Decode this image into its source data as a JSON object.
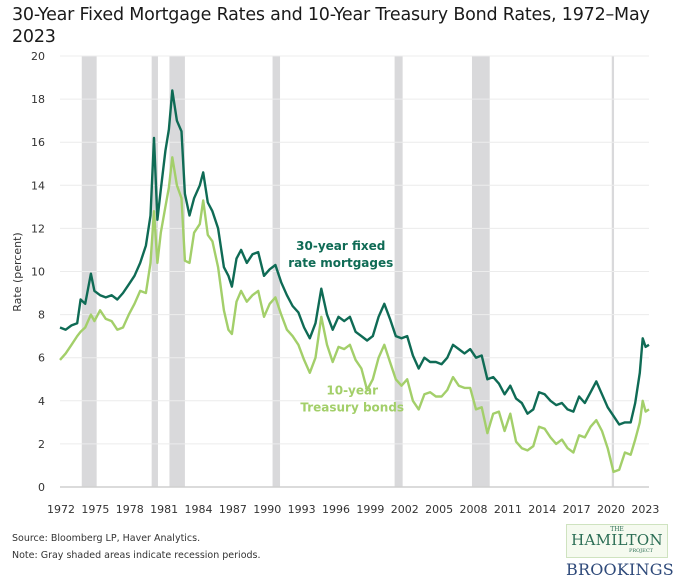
{
  "title": "30-Year Fixed Mortgage Rates and 10-Year Treasury Bond Rates, 1972–May 2023",
  "footer": {
    "source": "Source: Bloomberg LP, Haver Analytics.",
    "note": "Note: Gray shaded areas indicate recession periods."
  },
  "logos": {
    "hamilton_the": "THE",
    "hamilton_name": "HAMILTON",
    "hamilton_project": "PROJECT",
    "brookings": "BROOKINGS"
  },
  "chart_data": {
    "type": "line",
    "title": "30-Year Fixed Mortgage Rates and 10-Year Treasury Bond Rates, 1972–May 2023",
    "xlabel": "",
    "ylabel": "Rate (percent)",
    "xlim": [
      1972,
      2023.4
    ],
    "ylim": [
      0,
      20
    ],
    "grid": true,
    "x_ticks": [
      1972,
      1975,
      1978,
      1981,
      1984,
      1987,
      1990,
      1993,
      1996,
      1999,
      2002,
      2005,
      2008,
      2011,
      2014,
      2017,
      2020,
      2023
    ],
    "y_ticks": [
      0,
      2,
      4,
      6,
      8,
      10,
      12,
      14,
      16,
      18,
      20
    ],
    "recessions": [
      [
        1973.9,
        1975.2
      ],
      [
        1980.0,
        1980.55
      ],
      [
        1981.55,
        1982.9
      ],
      [
        1990.55,
        1991.2
      ],
      [
        2001.2,
        2001.9
      ],
      [
        2007.95,
        2009.5
      ],
      [
        2020.15,
        2020.35
      ]
    ],
    "recession_color": "#d9d9db",
    "annotations": [
      {
        "text_lines": [
          "30-year fixed",
          "rate mortgages"
        ],
        "series": "30-year fixed rate mortgages",
        "at": [
          1996.5,
          11.0
        ]
      },
      {
        "text_lines": [
          "10-year",
          "Treasury bonds"
        ],
        "series": "10-year Treasury bonds",
        "at": [
          1997.5,
          4.3
        ]
      }
    ],
    "series": [
      {
        "name": "30-year fixed rate mortgages",
        "color": "#0f6b55",
        "x": [
          1972.0,
          1972.5,
          1973.0,
          1973.5,
          1973.8,
          1974.2,
          1974.7,
          1975.0,
          1975.5,
          1976.0,
          1976.5,
          1977.0,
          1977.5,
          1978.0,
          1978.5,
          1979.0,
          1979.5,
          1979.9,
          1980.2,
          1980.5,
          1980.8,
          1981.2,
          1981.5,
          1981.8,
          1982.2,
          1982.6,
          1982.9,
          1983.3,
          1983.7,
          1984.2,
          1984.5,
          1984.9,
          1985.3,
          1985.8,
          1986.3,
          1986.7,
          1987.0,
          1987.4,
          1987.8,
          1988.3,
          1988.8,
          1989.3,
          1989.8,
          1990.3,
          1990.8,
          1991.3,
          1991.8,
          1992.3,
          1992.8,
          1993.3,
          1993.8,
          1994.3,
          1994.8,
          1995.3,
          1995.8,
          1996.3,
          1996.8,
          1997.3,
          1997.8,
          1998.3,
          1998.8,
          1999.3,
          1999.8,
          2000.3,
          2000.8,
          2001.3,
          2001.8,
          2002.3,
          2002.8,
          2003.3,
          2003.8,
          2004.3,
          2004.8,
          2005.3,
          2005.8,
          2006.3,
          2006.8,
          2007.3,
          2007.8,
          2008.3,
          2008.8,
          2009.3,
          2009.8,
          2010.3,
          2010.8,
          2011.3,
          2011.8,
          2012.3,
          2012.8,
          2013.3,
          2013.8,
          2014.3,
          2014.8,
          2015.3,
          2015.8,
          2016.3,
          2016.8,
          2017.3,
          2017.8,
          2018.3,
          2018.8,
          2019.3,
          2019.8,
          2020.3,
          2020.8,
          2021.3,
          2021.8,
          2022.2,
          2022.6,
          2022.85,
          2023.1,
          2023.4
        ],
        "values": [
          7.4,
          7.3,
          7.5,
          7.6,
          8.7,
          8.5,
          9.9,
          9.1,
          8.9,
          8.8,
          8.9,
          8.7,
          9.0,
          9.4,
          9.8,
          10.4,
          11.2,
          12.6,
          16.2,
          12.4,
          13.8,
          15.6,
          16.6,
          18.4,
          17.0,
          16.5,
          13.6,
          12.6,
          13.4,
          14.0,
          14.6,
          13.2,
          12.8,
          12.0,
          10.2,
          9.8,
          9.3,
          10.6,
          11.0,
          10.4,
          10.8,
          10.9,
          9.8,
          10.1,
          10.3,
          9.5,
          8.9,
          8.4,
          8.1,
          7.4,
          6.9,
          7.6,
          9.2,
          8.0,
          7.3,
          7.9,
          7.7,
          7.9,
          7.2,
          7.0,
          6.8,
          7.0,
          7.9,
          8.5,
          7.8,
          7.0,
          6.9,
          7.0,
          6.1,
          5.5,
          6.0,
          5.8,
          5.8,
          5.7,
          6.0,
          6.6,
          6.4,
          6.2,
          6.4,
          6.0,
          6.1,
          5.0,
          5.1,
          4.8,
          4.3,
          4.7,
          4.1,
          3.9,
          3.4,
          3.6,
          4.4,
          4.3,
          4.0,
          3.8,
          3.9,
          3.6,
          3.5,
          4.2,
          3.9,
          4.4,
          4.9,
          4.3,
          3.7,
          3.3,
          2.9,
          3.0,
          3.0,
          3.9,
          5.3,
          6.9,
          6.5,
          6.6
        ]
      },
      {
        "name": "10-year Treasury bonds",
        "color": "#a3cf6a",
        "x": [
          1972.0,
          1972.5,
          1973.0,
          1973.5,
          1973.8,
          1974.2,
          1974.7,
          1975.0,
          1975.5,
          1976.0,
          1976.5,
          1977.0,
          1977.5,
          1978.0,
          1978.5,
          1979.0,
          1979.5,
          1979.9,
          1980.2,
          1980.5,
          1980.8,
          1981.2,
          1981.5,
          1981.8,
          1982.2,
          1982.6,
          1982.9,
          1983.3,
          1983.7,
          1984.2,
          1984.5,
          1984.9,
          1985.3,
          1985.8,
          1986.3,
          1986.7,
          1987.0,
          1987.4,
          1987.8,
          1988.3,
          1988.8,
          1989.3,
          1989.8,
          1990.3,
          1990.8,
          1991.3,
          1991.8,
          1992.3,
          1992.8,
          1993.3,
          1993.8,
          1994.3,
          1994.8,
          1995.3,
          1995.8,
          1996.3,
          1996.8,
          1997.3,
          1997.8,
          1998.3,
          1998.8,
          1999.3,
          1999.8,
          2000.3,
          2000.8,
          2001.3,
          2001.8,
          2002.3,
          2002.8,
          2003.3,
          2003.8,
          2004.3,
          2004.8,
          2005.3,
          2005.8,
          2006.3,
          2006.8,
          2007.3,
          2007.8,
          2008.3,
          2008.8,
          2009.3,
          2009.8,
          2010.3,
          2010.8,
          2011.3,
          2011.8,
          2012.3,
          2012.8,
          2013.3,
          2013.8,
          2014.3,
          2014.8,
          2015.3,
          2015.8,
          2016.3,
          2016.8,
          2017.3,
          2017.8,
          2018.3,
          2018.8,
          2019.3,
          2019.8,
          2020.3,
          2020.8,
          2021.3,
          2021.8,
          2022.2,
          2022.6,
          2022.85,
          2023.1,
          2023.4
        ],
        "values": [
          5.9,
          6.2,
          6.6,
          7.0,
          7.2,
          7.4,
          8.0,
          7.7,
          8.2,
          7.8,
          7.7,
          7.3,
          7.4,
          8.0,
          8.5,
          9.1,
          9.0,
          10.4,
          12.8,
          10.4,
          11.8,
          13.0,
          13.9,
          15.3,
          14.0,
          13.4,
          10.5,
          10.4,
          11.8,
          12.2,
          13.3,
          11.7,
          11.4,
          10.2,
          8.2,
          7.3,
          7.1,
          8.6,
          9.1,
          8.6,
          8.9,
          9.1,
          7.9,
          8.5,
          8.8,
          8.0,
          7.3,
          7.0,
          6.6,
          5.9,
          5.3,
          6.0,
          7.9,
          6.6,
          5.8,
          6.5,
          6.4,
          6.6,
          5.9,
          5.5,
          4.5,
          5.0,
          6.0,
          6.6,
          5.8,
          5.0,
          4.7,
          5.0,
          4.0,
          3.6,
          4.3,
          4.4,
          4.2,
          4.2,
          4.5,
          5.1,
          4.7,
          4.6,
          4.6,
          3.6,
          3.7,
          2.5,
          3.4,
          3.5,
          2.6,
          3.4,
          2.1,
          1.8,
          1.7,
          1.9,
          2.8,
          2.7,
          2.3,
          2.0,
          2.2,
          1.8,
          1.6,
          2.4,
          2.3,
          2.8,
          3.1,
          2.6,
          1.8,
          0.7,
          0.8,
          1.6,
          1.5,
          2.2,
          3.0,
          4.0,
          3.5,
          3.6
        ]
      }
    ]
  }
}
